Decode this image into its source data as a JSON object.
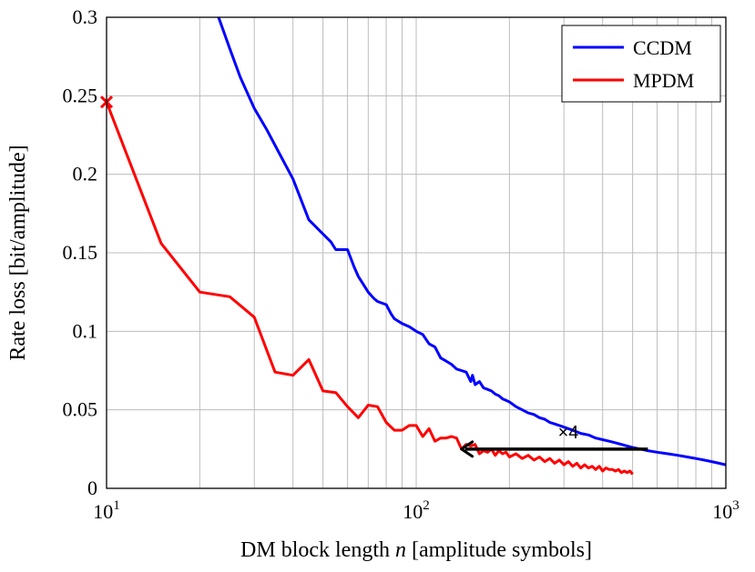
{
  "chart_data": {
    "type": "line",
    "title": "",
    "xlabel_main": "DM block length ",
    "xlabel_var": "n",
    "xlabel_tail": " [amplitude symbols]",
    "ylabel": "Rate loss [bit/amplitude]",
    "x_scale": "log",
    "xlim": [
      10,
      1000
    ],
    "ylim": [
      0,
      0.3
    ],
    "x_ticks": [
      {
        "value": 10,
        "base": "10",
        "exp": "1"
      },
      {
        "value": 100,
        "base": "10",
        "exp": "2"
      },
      {
        "value": 1000,
        "base": "10",
        "exp": "3"
      }
    ],
    "y_ticks": [
      {
        "value": 0,
        "label": "0"
      },
      {
        "value": 0.05,
        "label": "0.05"
      },
      {
        "value": 0.1,
        "label": "0.1"
      },
      {
        "value": 0.15,
        "label": "0.15"
      },
      {
        "value": 0.2,
        "label": "0.2"
      },
      {
        "value": 0.25,
        "label": "0.25"
      },
      {
        "value": 0.3,
        "label": "0.3"
      }
    ],
    "grid": "major and minor vertical, major horizontal",
    "legend_position": "top-right",
    "series": [
      {
        "name": "CCDM",
        "color": "#0000ff",
        "x": [
          23,
          25,
          27,
          30,
          33,
          36,
          40,
          45,
          50,
          53,
          55,
          60,
          63,
          65,
          70,
          73,
          75,
          80,
          83,
          85,
          90,
          95,
          100,
          105,
          110,
          115,
          120,
          125,
          130,
          135,
          140,
          145,
          150,
          152,
          155,
          160,
          165,
          170,
          175,
          180,
          185,
          190,
          195,
          200,
          210,
          220,
          230,
          240,
          250,
          260,
          270,
          280,
          290,
          300,
          320,
          340,
          360,
          380,
          400,
          420,
          440,
          460,
          480,
          500,
          530,
          560,
          600,
          650,
          700,
          750,
          800,
          850,
          900,
          950,
          1000
        ],
        "values": [
          0.3,
          0.28,
          0.262,
          0.242,
          0.228,
          0.214,
          0.197,
          0.171,
          0.162,
          0.157,
          0.152,
          0.152,
          0.141,
          0.135,
          0.125,
          0.121,
          0.119,
          0.117,
          0.111,
          0.108,
          0.105,
          0.103,
          0.1,
          0.098,
          0.092,
          0.09,
          0.083,
          0.081,
          0.079,
          0.076,
          0.075,
          0.074,
          0.068,
          0.072,
          0.066,
          0.068,
          0.064,
          0.063,
          0.062,
          0.06,
          0.059,
          0.057,
          0.056,
          0.055,
          0.052,
          0.05,
          0.048,
          0.047,
          0.045,
          0.044,
          0.042,
          0.041,
          0.04,
          0.039,
          0.037,
          0.035,
          0.034,
          0.032,
          0.031,
          0.03,
          0.029,
          0.028,
          0.027,
          0.026,
          0.025,
          0.024,
          0.023,
          0.022,
          0.021,
          0.02,
          0.019,
          0.018,
          0.017,
          0.016,
          0.015
        ]
      },
      {
        "name": "MPDM",
        "color": "#ff0000",
        "x": [
          10,
          15,
          20,
          25,
          30,
          35,
          40,
          45,
          50,
          55,
          60,
          65,
          70,
          75,
          80,
          85,
          90,
          95,
          100,
          105,
          110,
          115,
          120,
          125,
          130,
          135,
          140,
          145,
          150,
          155,
          160,
          165,
          170,
          175,
          180,
          185,
          190,
          195,
          200,
          210,
          220,
          230,
          240,
          250,
          260,
          270,
          280,
          290,
          300,
          310,
          320,
          330,
          340,
          350,
          360,
          370,
          380,
          390,
          400,
          410,
          420,
          430,
          440,
          450,
          460,
          470,
          480,
          490,
          500
        ],
        "values": [
          0.246,
          0.156,
          0.125,
          0.122,
          0.109,
          0.074,
          0.072,
          0.082,
          0.062,
          0.061,
          0.052,
          0.045,
          0.053,
          0.052,
          0.042,
          0.037,
          0.037,
          0.04,
          0.04,
          0.033,
          0.038,
          0.03,
          0.032,
          0.032,
          0.033,
          0.032,
          0.025,
          0.028,
          0.027,
          0.028,
          0.022,
          0.024,
          0.023,
          0.025,
          0.021,
          0.024,
          0.022,
          0.023,
          0.02,
          0.022,
          0.019,
          0.021,
          0.018,
          0.02,
          0.017,
          0.019,
          0.016,
          0.018,
          0.015,
          0.017,
          0.014,
          0.016,
          0.013,
          0.015,
          0.013,
          0.014,
          0.012,
          0.014,
          0.011,
          0.013,
          0.012,
          0.012,
          0.011,
          0.012,
          0.01,
          0.011,
          0.01,
          0.011,
          0.009
        ]
      }
    ],
    "marker": {
      "x": 10,
      "y": 0.246,
      "symbol": "x",
      "color": "#ff0000"
    },
    "annotation": {
      "text": "×4",
      "x_from": 560,
      "x_to": 140,
      "y": 0.025
    }
  }
}
